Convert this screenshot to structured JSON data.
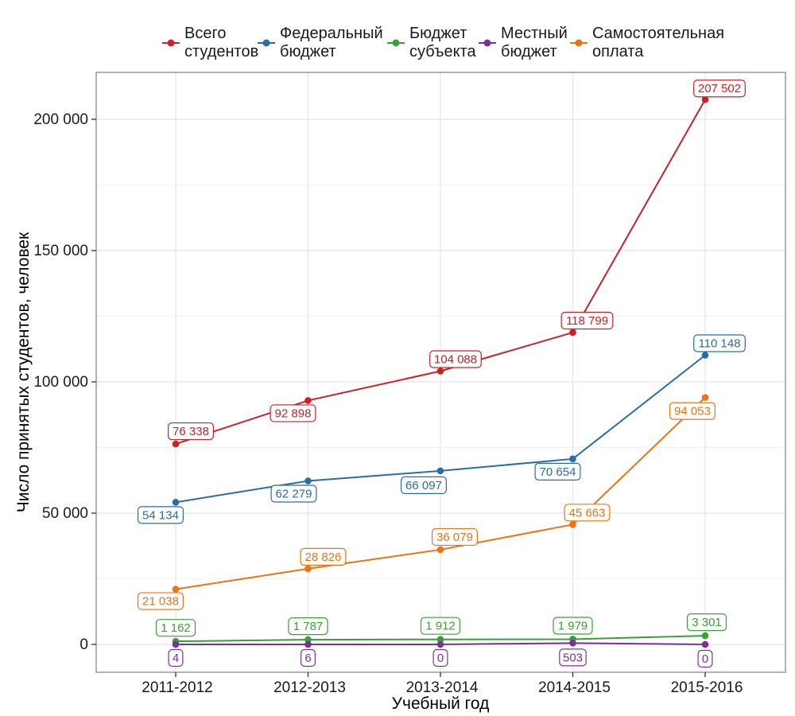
{
  "legend": {
    "position": "top",
    "items": [
      {
        "name": "Всего студентов",
        "line1": "Всего",
        "line2": "студентов",
        "color": "#CB2026"
      },
      {
        "name": "Федеральный бюджет",
        "line1": "Федеральный",
        "line2": "бюджет",
        "color": "#2B6CA4"
      },
      {
        "name": "Бюджет субъекта",
        "line1": "Бюджет",
        "line2": "субъекта",
        "color": "#39A039"
      },
      {
        "name": "Местный бюджет",
        "line1": "Местный",
        "line2": "бюджет",
        "color": "#7E3195"
      },
      {
        "name": "Самостоятельная оплата",
        "line1": "Самостоятельная",
        "line2": "оплата",
        "color": "#EE7215"
      }
    ]
  },
  "chart_data": {
    "type": "line",
    "title": "",
    "xlabel": "Учебный год",
    "ylabel": "Число принятых студентов, человек",
    "categories": [
      "2011-2012",
      "2012-2013",
      "2013-2014",
      "2014-2015",
      "2015-2016"
    ],
    "y_ticks": [
      {
        "value": 0,
        "label": "0"
      },
      {
        "value": 50000,
        "label": "50 000"
      },
      {
        "value": 100000,
        "label": "100 000"
      },
      {
        "value": 150000,
        "label": "150 000"
      },
      {
        "value": 200000,
        "label": "200 000"
      }
    ],
    "y_minor_ticks": [
      25000,
      75000,
      125000,
      175000
    ],
    "ylim": [
      -10400,
      218000
    ],
    "grid": true,
    "legend_position": "top",
    "series": [
      {
        "name": "Всего студентов",
        "color": "#CB2026",
        "values": [
          76338,
          92898,
          104088,
          118799,
          207502
        ],
        "label_offsets": [
          [
            19,
            -16
          ],
          [
            -19,
            16
          ],
          [
            19,
            -15
          ],
          [
            18,
            -15
          ],
          [
            18,
            -14
          ]
        ]
      },
      {
        "name": "Федеральный бюджет",
        "color": "#2B6CA4",
        "values": [
          54134,
          62279,
          66097,
          70654,
          110148
        ],
        "label_offsets": [
          [
            -19,
            16
          ],
          [
            -18,
            16
          ],
          [
            -21,
            18
          ],
          [
            -19,
            16
          ],
          [
            18,
            -15
          ]
        ]
      },
      {
        "name": "Бюджет субъекта",
        "color": "#39A039",
        "values": [
          1162,
          1787,
          1912,
          1979,
          3301
        ],
        "label_offsets": [
          [
            0,
            -17
          ],
          [
            0,
            -17
          ],
          [
            0,
            -17
          ],
          [
            0,
            -17
          ],
          [
            2,
            -17
          ]
        ]
      },
      {
        "name": "Местный бюджет",
        "color": "#7E3195",
        "values": [
          4,
          6,
          0,
          503,
          0
        ],
        "label_offsets": [
          [
            0,
            17
          ],
          [
            0,
            17
          ],
          [
            0,
            17
          ],
          [
            0,
            18
          ],
          [
            0,
            18
          ]
        ]
      },
      {
        "name": "Самостоятельная оплата",
        "color": "#EE7215",
        "values": [
          21038,
          28826,
          36079,
          45663,
          94053
        ],
        "label_offsets": [
          [
            -19,
            15
          ],
          [
            19,
            -15
          ],
          [
            18,
            -16
          ],
          [
            18,
            -15
          ],
          [
            -16,
            17
          ]
        ]
      }
    ]
  },
  "colors": {
    "background": "#ffffff",
    "panel_border": "#888888",
    "grid_major": "#e4e4e4",
    "grid_minor": "#efefef",
    "tick": "#333333",
    "tick_label": "#1a1a1a",
    "axis_title": "#000000"
  }
}
